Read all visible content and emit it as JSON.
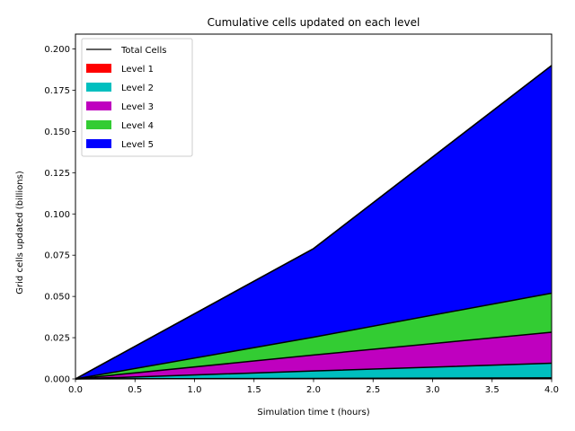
{
  "chart_data": {
    "type": "area",
    "title": "Cumulative cells updated on each level",
    "xlabel": "Simulation time t (hours)",
    "ylabel": "Grid cells updated (billions)",
    "xlim": [
      0.0,
      4.0
    ],
    "ylim": [
      0.0,
      0.209
    ],
    "grid": false,
    "stacked": true,
    "legend_position": "top-left",
    "x": [
      0.0,
      2.0,
      4.0
    ],
    "x_ticks": [
      "0.0",
      "0.5",
      "1.0",
      "1.5",
      "2.0",
      "2.5",
      "3.0",
      "3.5",
      "4.0"
    ],
    "y_ticks": [
      "0.000",
      "0.025",
      "0.050",
      "0.075",
      "0.100",
      "0.125",
      "0.150",
      "0.175",
      "0.200"
    ],
    "series": [
      {
        "name": "Level 1",
        "color": "#ff0000",
        "values": [
          0.0,
          0.0003,
          0.0006
        ]
      },
      {
        "name": "Level 2",
        "color": "#00bfbf",
        "values": [
          0.0,
          0.0045,
          0.0089
        ]
      },
      {
        "name": "Level 3",
        "color": "#bf00bf",
        "values": [
          0.0,
          0.0097,
          0.0188
        ]
      },
      {
        "name": "Level 4",
        "color": "#33cc33",
        "values": [
          0.0,
          0.0108,
          0.0237
        ]
      },
      {
        "name": "Level 5",
        "color": "#0000ff",
        "values": [
          0.0,
          0.0537,
          0.138
        ]
      }
    ],
    "total": {
      "name": "Total Cells",
      "color": "#000000",
      "values": [
        0.0,
        0.079,
        0.19
      ]
    }
  }
}
